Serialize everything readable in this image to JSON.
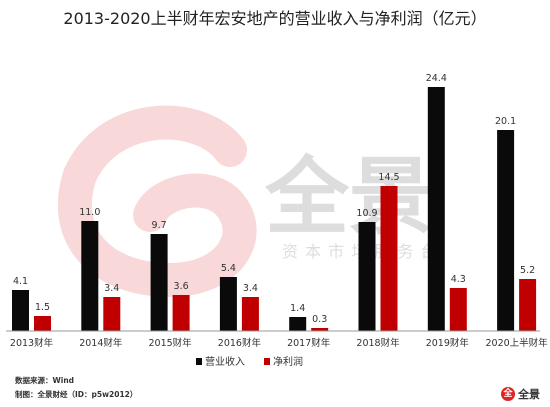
{
  "title": "2013-2020上半财年宏安地产的营业收入与净利润（亿元）",
  "colors": {
    "revenue": "#0a0a0a",
    "profit": "#c00000",
    "watermark_red": "#f2b8b8"
  },
  "chart_data": {
    "type": "bar",
    "title": "2013-2020上半财年宏安地产的营业收入与净利润（亿元）",
    "categories": [
      "2013财年",
      "2014财年",
      "2015财年",
      "2016财年",
      "2017财年",
      "2018财年",
      "2019财年",
      "2020上半财年"
    ],
    "series": [
      {
        "name": "营业收入",
        "values": [
          4.1,
          11.0,
          9.7,
          5.4,
          1.4,
          10.9,
          24.4,
          20.1
        ],
        "labels": [
          "4.1",
          "11.0",
          "9.7",
          "5.4",
          "1.4",
          "10.9",
          "24.4",
          "20.1"
        ]
      },
      {
        "name": "净利润",
        "values": [
          1.5,
          3.4,
          3.6,
          3.4,
          0.3,
          14.5,
          4.3,
          5.2
        ],
        "labels": [
          "1.5",
          "3.4",
          "3.6",
          "3.4",
          "0.3",
          "14.5",
          "4.3",
          "5.2"
        ]
      }
    ],
    "ylim": [
      0,
      25
    ],
    "legend_position": "bottom",
    "grid": false
  },
  "watermark": {
    "main": "全景",
    "sub": "资 本 市 场 服 务 台"
  },
  "footer": {
    "source": "数据来源：Wind",
    "maker": "制图：全景财经（ID：p5w2012）"
  },
  "logo": {
    "mark": "全",
    "text": "全景"
  }
}
